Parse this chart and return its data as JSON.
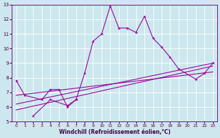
{
  "title": "",
  "xlabel": "Windchill (Refroidissement éolien,°C)",
  "xlim": [
    -0.5,
    23.5
  ],
  "ylim": [
    5,
    13
  ],
  "xticks": [
    0,
    1,
    2,
    3,
    4,
    5,
    6,
    7,
    8,
    9,
    10,
    11,
    12,
    13,
    14,
    15,
    16,
    17,
    18,
    19,
    20,
    21,
    22,
    23
  ],
  "yticks": [
    5,
    6,
    7,
    8,
    9,
    10,
    11,
    12,
    13
  ],
  "bg_color": "#cce8ee",
  "line_color": "#990099",
  "grid_color": "#ffffff",
  "jagged": {
    "x": [
      0,
      1,
      3,
      4,
      5,
      6,
      7,
      8,
      9,
      10,
      11,
      12,
      13,
      14,
      15,
      16,
      17,
      18,
      19,
      21,
      22,
      23
    ],
    "y": [
      7.8,
      6.8,
      6.5,
      7.2,
      7.2,
      6.0,
      6.5,
      8.3,
      10.5,
      11.0,
      12.9,
      11.4,
      11.4,
      11.1,
      12.2,
      10.7,
      10.1,
      9.4,
      8.6,
      7.9,
      8.3,
      9.0
    ]
  },
  "short": {
    "x": [
      2,
      4,
      6,
      7
    ],
    "y": [
      5.4,
      6.5,
      6.1,
      6.5
    ]
  },
  "straight1": {
    "x": [
      0,
      23
    ],
    "y": [
      5.8,
      8.8
    ]
  },
  "straight2": {
    "x": [
      0,
      23
    ],
    "y": [
      6.2,
      9.0
    ]
  },
  "straight3": {
    "x": [
      0,
      23
    ],
    "y": [
      6.8,
      8.4
    ]
  }
}
